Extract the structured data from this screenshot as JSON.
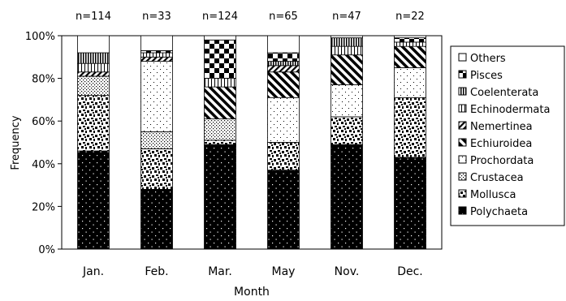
{
  "chart_data": {
    "type": "bar",
    "stacked": true,
    "percent": true,
    "xlabel": "Month",
    "ylabel": "Frequency",
    "ylim": [
      0,
      100
    ],
    "yticks": [
      "0%",
      "20%",
      "40%",
      "60%",
      "80%",
      "100%"
    ],
    "categories": [
      "Jan.",
      "Feb.",
      "Mar.",
      "May",
      "Nov.",
      "Dec."
    ],
    "sample_sizes": [
      "n=114",
      "n=33",
      "n=124",
      "n=65",
      "n=47",
      "n=22"
    ],
    "series": [
      {
        "name": "Polychaeta",
        "pattern": "dots-on-black",
        "values": [
          46,
          28,
          49,
          37,
          49,
          43
        ]
      },
      {
        "name": "Mollusca",
        "pattern": "blotch",
        "values": [
          26,
          19,
          2,
          13,
          13,
          28
        ]
      },
      {
        "name": "Crustacea",
        "pattern": "dense-dots",
        "values": [
          9,
          8,
          10,
          0,
          0,
          0
        ]
      },
      {
        "name": "Prochordata",
        "pattern": "sparse-dots",
        "values": [
          0,
          33,
          0,
          21,
          15,
          14
        ]
      },
      {
        "name": "Echiuroidea",
        "pattern": "wide-diagonal",
        "values": [
          0,
          0,
          15,
          12,
          14,
          10
        ]
      },
      {
        "name": "Nemertinea",
        "pattern": "diagonal",
        "values": [
          2,
          2,
          0,
          3,
          0,
          0
        ]
      },
      {
        "name": "Echinodermata",
        "pattern": "vertical-fine",
        "values": [
          4,
          2,
          4,
          0,
          4,
          2
        ]
      },
      {
        "name": "Coelenterata",
        "pattern": "vertical",
        "values": [
          5,
          0,
          0,
          2,
          4,
          0
        ]
      },
      {
        "name": "Pisces",
        "pattern": "checker",
        "values": [
          0,
          1,
          18,
          4,
          0,
          2
        ]
      },
      {
        "name": "Others",
        "pattern": "white",
        "values": [
          8,
          7,
          2,
          8,
          1,
          1
        ]
      }
    ],
    "legend_position": "right",
    "grid": false
  }
}
